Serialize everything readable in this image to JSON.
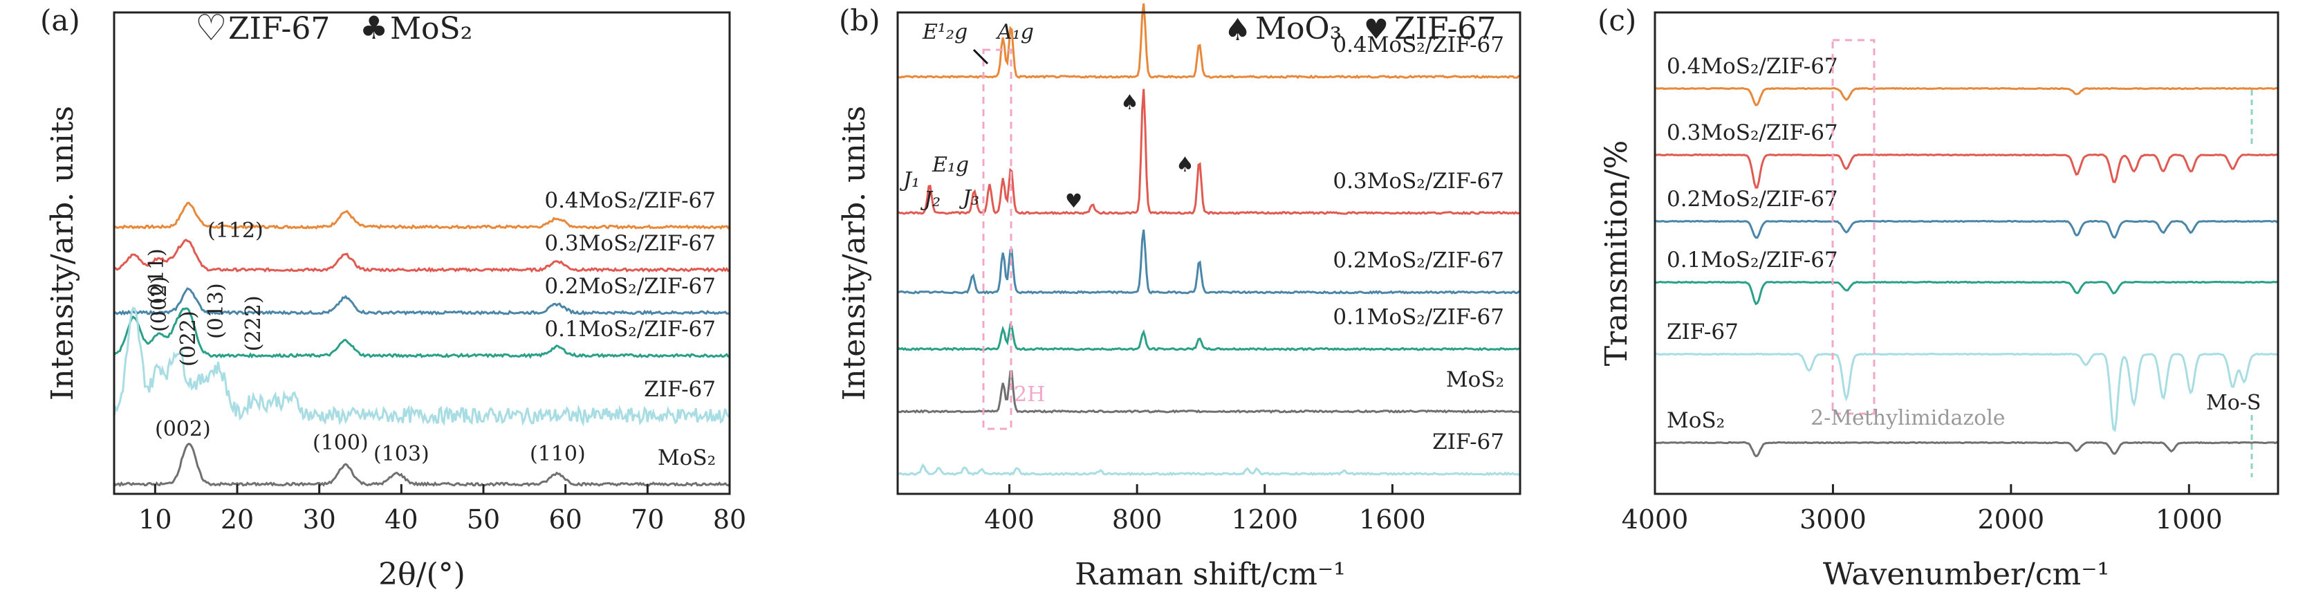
{
  "chart_data": [
    {
      "panel_label": "(a)",
      "type": "line",
      "xlabel": "2θ/(°)",
      "ylabel": "Intensity/arb. units",
      "xlim": [
        5,
        80
      ],
      "xticks": [
        10,
        20,
        30,
        40,
        50,
        60,
        70,
        80
      ],
      "legend": [
        {
          "icon": "heart-outline-icon",
          "color": "#e02020",
          "label": "ZIF-67"
        },
        {
          "icon": "club-icon",
          "color": "#8cc63f",
          "label": "MoS₂"
        }
      ],
      "series": [
        {
          "name": "0.4MoS₂/ZIF-67",
          "color": "#e8883a",
          "offset": 6,
          "peaks": [
            [
              14.1,
              0.55
            ],
            [
              33.2,
              0.35
            ],
            [
              59,
              0.2
            ]
          ]
        },
        {
          "name": "0.3MoS₂/ZIF-67",
          "color": "#e05a52",
          "offset": 5,
          "peaks": [
            [
              7.4,
              0.35
            ],
            [
              10.4,
              0.25
            ],
            [
              12.7,
              0.3
            ],
            [
              14.1,
              0.6
            ],
            [
              33.2,
              0.35
            ],
            [
              59,
              0.2
            ]
          ]
        },
        {
          "name": "0.2MoS₂/ZIF-67",
          "color": "#4a86a8",
          "offset": 4,
          "peaks": [
            [
              14.1,
              0.55
            ],
            [
              33.2,
              0.35
            ],
            [
              59,
              0.2
            ]
          ]
        },
        {
          "name": "0.1MoS₂/ZIF-67",
          "color": "#2aa089",
          "offset": 3,
          "peaks": [
            [
              7.4,
              0.9
            ],
            [
              10.4,
              0.5
            ],
            [
              12.7,
              0.6
            ],
            [
              14.1,
              0.9
            ],
            [
              33.2,
              0.35
            ],
            [
              59,
              0.2
            ]
          ]
        },
        {
          "name": "ZIF-67",
          "color": "#a8dde3",
          "offset": 1.6,
          "peaks": [
            [
              7.4,
              2.4
            ],
            [
              10.4,
              1.1
            ],
            [
              12.7,
              1.5
            ],
            [
              14.8,
              0.6
            ],
            [
              16.5,
              0.7
            ],
            [
              18.0,
              0.9
            ],
            [
              22.1,
              0.4
            ],
            [
              24.5,
              0.35
            ],
            [
              26.7,
              0.4
            ]
          ]
        },
        {
          "name": "MoS₂",
          "color": "#707070",
          "offset": 0,
          "peaks": [
            [
              14.1,
              0.95
            ],
            [
              33.2,
              0.45
            ],
            [
              39.5,
              0.25
            ],
            [
              59,
              0.25
            ]
          ]
        }
      ],
      "annotations": [
        {
          "text": "(002)",
          "x": 14.1
        },
        {
          "text": "(100)",
          "x": 33.2
        },
        {
          "text": "(103)",
          "x": 39.5
        },
        {
          "text": "(110)",
          "x": 59
        },
        {
          "text": "(011)",
          "x": 10.4
        },
        {
          "text": "(002)",
          "x": 12.7
        },
        {
          "text": "(112)",
          "x": 14.8
        },
        {
          "text": "(022)",
          "x": 16.5
        },
        {
          "text": "(013)",
          "x": 18.0
        },
        {
          "text": "(222)",
          "x": 22.1
        }
      ]
    },
    {
      "panel_label": "(b)",
      "type": "line",
      "xlabel": "Raman shift/cm⁻¹",
      "ylabel": "Intensity/arb. units",
      "xlim": [
        50,
        2000
      ],
      "xticks": [
        400,
        800,
        1200,
        1600
      ],
      "legend": [
        {
          "icon": "spade-icon",
          "color": "#f5c542",
          "label": "MoO₃"
        },
        {
          "icon": "heart-icon",
          "color": "#e02020",
          "label": "ZIF-67"
        }
      ],
      "series": [
        {
          "name": "0.4MoS₂/ZIF-67",
          "color": "#e8883a",
          "offset": 7,
          "peaks": [
            [
              380,
              0.7
            ],
            [
              405,
              0.9
            ],
            [
              820,
              1.3
            ],
            [
              995,
              0.6
            ]
          ]
        },
        {
          "name": "0.3MoS₂/ZIF-67",
          "color": "#e05a52",
          "offset": 4.6,
          "peaks": [
            [
              150,
              0.5
            ],
            [
              290,
              0.4
            ],
            [
              338,
              0.5
            ],
            [
              380,
              0.6
            ],
            [
              405,
              0.8
            ],
            [
              660,
              0.15
            ],
            [
              820,
              2.2
            ],
            [
              995,
              0.9
            ]
          ]
        },
        {
          "name": "0.2MoS₂/ZIF-67",
          "color": "#4a86a8",
          "offset": 3.2,
          "peaks": [
            [
              285,
              0.3
            ],
            [
              380,
              0.7
            ],
            [
              405,
              0.8
            ],
            [
              820,
              1.1
            ],
            [
              995,
              0.55
            ]
          ]
        },
        {
          "name": "0.1MoS₂/ZIF-67",
          "color": "#2aa089",
          "offset": 2.2,
          "peaks": [
            [
              380,
              0.35
            ],
            [
              405,
              0.45
            ],
            [
              820,
              0.3
            ],
            [
              995,
              0.2
            ]
          ]
        },
        {
          "name": "MoS₂",
          "color": "#707070",
          "offset": 1.1,
          "peaks": [
            [
              380,
              0.5
            ],
            [
              405,
              0.75
            ]
          ]
        },
        {
          "name": "ZIF-67",
          "color": "#a8dde3",
          "offset": 0,
          "peaks": [
            [
              130,
              0.15
            ],
            [
              178,
              0.12
            ],
            [
              260,
              0.12
            ],
            [
              311,
              0.08
            ],
            [
              425,
              0.1
            ],
            [
              685,
              0.05
            ],
            [
              1145,
              0.1
            ],
            [
              1175,
              0.08
            ],
            [
              1450,
              0.05
            ]
          ]
        }
      ],
      "annotations": [
        {
          "text": "E¹₂g"
        },
        {
          "text": "A₁g"
        },
        {
          "text": "J₁"
        },
        {
          "text": "E₁g"
        },
        {
          "text": "J₂"
        },
        {
          "text": "J₃"
        },
        {
          "text": "2H"
        }
      ]
    },
    {
      "panel_label": "(c)",
      "type": "line",
      "xlabel": "Wavenumber/cm⁻¹",
      "ylabel": "Transmition/%",
      "xlim": [
        4000,
        500
      ],
      "xticks": [
        4000,
        3000,
        2000,
        1000
      ],
      "series": [
        {
          "name": "0.4MoS₂/ZIF-67",
          "color": "#e8883a",
          "offset": 6.4,
          "dips": [
            [
              3430,
              0.3
            ],
            [
              2925,
              0.2
            ],
            [
              1630,
              0.1
            ]
          ]
        },
        {
          "name": "0.3MoS₂/ZIF-67",
          "color": "#e05a52",
          "offset": 5.2,
          "dips": [
            [
              3430,
              0.6
            ],
            [
              2925,
              0.25
            ],
            [
              1630,
              0.35
            ],
            [
              1420,
              0.5
            ],
            [
              1310,
              0.3
            ],
            [
              1145,
              0.3
            ],
            [
              990,
              0.3
            ],
            [
              755,
              0.25
            ]
          ]
        },
        {
          "name": "0.2MoS₂/ZIF-67",
          "color": "#4a86a8",
          "offset": 4.0,
          "dips": [
            [
              3430,
              0.3
            ],
            [
              2925,
              0.2
            ],
            [
              1630,
              0.25
            ],
            [
              1420,
              0.3
            ],
            [
              1145,
              0.2
            ],
            [
              990,
              0.2
            ]
          ]
        },
        {
          "name": "0.1MoS₂/ZIF-67",
          "color": "#2aa089",
          "offset": 2.9,
          "dips": [
            [
              3430,
              0.4
            ],
            [
              2925,
              0.15
            ],
            [
              1630,
              0.2
            ],
            [
              1420,
              0.2
            ]
          ]
        },
        {
          "name": "ZIF-67",
          "color": "#a8dde3",
          "offset": 1.6,
          "dips": [
            [
              3135,
              0.3
            ],
            [
              2925,
              0.8
            ],
            [
              1580,
              0.2
            ],
            [
              1420,
              1.4
            ],
            [
              1310,
              0.9
            ],
            [
              1145,
              0.8
            ],
            [
              990,
              0.7
            ],
            [
              755,
              0.6
            ],
            [
              690,
              0.5
            ]
          ]
        },
        {
          "name": "MoS₂",
          "color": "#707070",
          "offset": 0,
          "dips": [
            [
              3430,
              0.25
            ],
            [
              1630,
              0.15
            ],
            [
              1420,
              0.2
            ],
            [
              1100,
              0.15
            ]
          ]
        }
      ],
      "annotations": [
        {
          "text": "2-Methylimidazole"
        },
        {
          "text": "Mo-S"
        }
      ]
    }
  ]
}
